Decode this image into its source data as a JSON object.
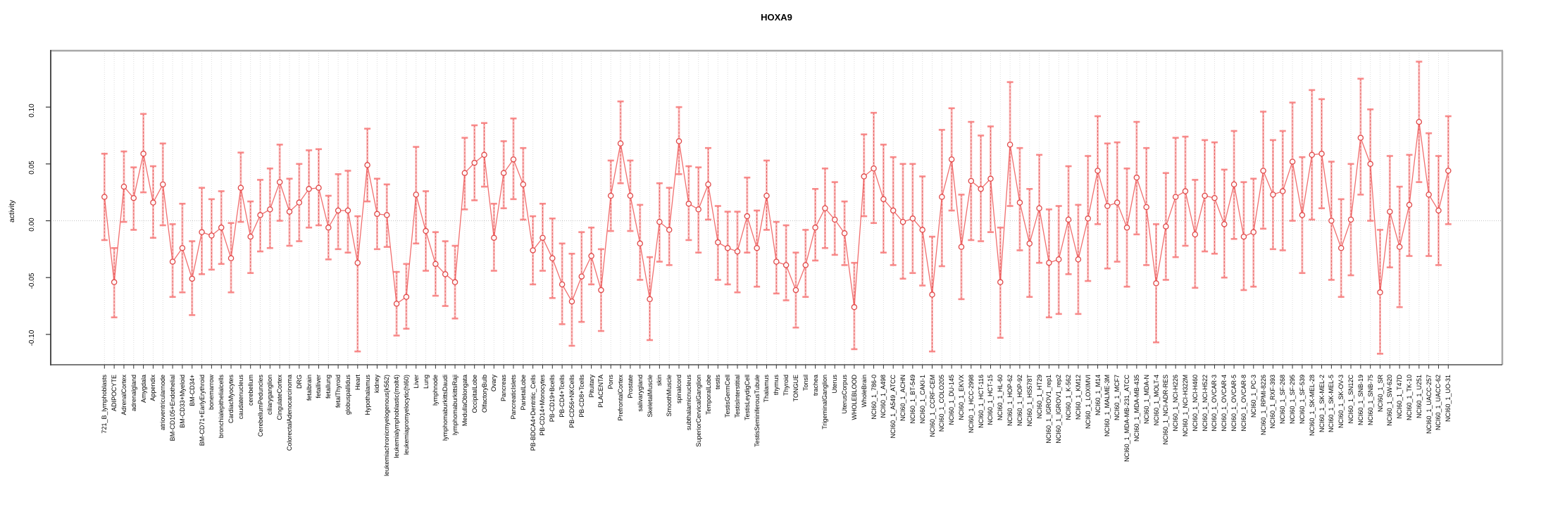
{
  "figure": {
    "title": "HOXA9",
    "y_axis_label": "activity"
  },
  "chart_data": {
    "type": "line",
    "title": "HOXA9",
    "xlabel": "",
    "ylabel": "activity",
    "ylim": [
      -0.127,
      0.15
    ],
    "ytick_labels": [
      "0.10",
      "0.05",
      "0.00",
      "-0.05",
      "-0.10"
    ],
    "ytick_values": [
      0.1,
      0.05,
      0.0,
      -0.05,
      -0.1
    ],
    "grid": "vertical-dotted-per-category, dotted-zero-line",
    "legend_position": "none",
    "marker": "open-circle",
    "error_bars": true,
    "colors": {
      "point_stroke": "#e04848",
      "line": "#ee5555",
      "error_bar": "#f98c8c",
      "error_bar_cap": "#f87f7f",
      "gridline": "#dcdcdc",
      "zero_line": "#c4c4c4",
      "box_light": "#a8a8a8",
      "box_dark": "#4d4d4d",
      "tick": "#333333"
    },
    "categories": [
      "721_B_lymphoblasts",
      "ADIPOCYTE",
      "AdrenalCortex",
      "adrenalgland",
      "Amygdala",
      "Appendix",
      "atrioventricularnode",
      "BM-CD105+Endothelial",
      "BM-CD33+Myeloid",
      "BM-CD34+",
      "BM-CD71+EarlyErythroid",
      "bonemarrow",
      "bronchialepithelialcells",
      "CardiacMyocytes",
      "caudatenucleus",
      "cerebellum",
      "CerebellumPeduncles",
      "ciliaryganglion",
      "CingulateCortex",
      "ColorectalAdenocarcinoma",
      "DRG",
      "fetalbrain",
      "fetalliver",
      "fetallung",
      "fetalThyroid",
      "globuspallidus",
      "Heart",
      "Hypothalamus",
      "kidney",
      "leukemiachronicmyelogenous(k562)",
      "leukemialymphoblastic(molt4)",
      "leukemiapromyelocytic(hl60)",
      "Liver",
      "Lung",
      "lymphnode",
      "lymphomaburkittsDaudi",
      "lymphomaburkittsRaji",
      "MedullaOblongata",
      "OccipitalLobe",
      "OlfactoryBulb",
      "Ovary",
      "Pancreas",
      "PancreaticIslets",
      "ParietalLobe",
      "PB-BDCA4+Dentritic_Cells",
      "PB-CD14+Monocytes",
      "PB-CD19+Bcells",
      "PB-CD4+Tcells",
      "PB-CD56+NKCells",
      "PB-CD8+Tcells",
      "Pituitary",
      "PLACENTA",
      "Pons",
      "PrefrontalCortex",
      "Prostate",
      "salivarygland",
      "SkeletalMuscle",
      "skin",
      "SmoothMuscle",
      "spinalcord",
      "subthalamicnucleus",
      "SuperiorCervicalGanglion",
      "TemporalLobe",
      "testis",
      "TestisGermCell",
      "TestisInterstitial",
      "TestisLeydigCell",
      "TestisSeminiferousTubule",
      "Thalamus",
      "thymus",
      "Thyroid",
      "TONGUE",
      "Tonsil",
      "trachea",
      "TrigeminalGanglion",
      "Uterus",
      "UterusCorpus",
      "WHOLEBLOOD",
      "WholeBrain",
      "NCI60_1_786-0",
      "NCI60_1_A498",
      "NCI60_1_A549_ATCC",
      "NCI60_1_ACHN",
      "NCI60_1_BT-549",
      "NCI60_1_CAKI-1",
      "NCI60_1_CCRF-CEM",
      "NCI60_1_COLO205",
      "NCI60_1_DU-145",
      "NCI60_1_EKVX",
      "NCI60_1_HCC-2998",
      "NCI60_1_HCT-116",
      "NCI60_1_HCT-15",
      "NCI60_1_HL-60",
      "NCI60_1_HOP-62",
      "NCI60_1_HOP-92",
      "NCI60_1_HS578T",
      "NCI60_1_HT29",
      "NCI60_1_IGROV1_rep1",
      "NCI60_1_IGROV1_rep2",
      "NCI60_1_K-562",
      "NCI60_1_KM12",
      "NCI60_1_LOXIMVI",
      "NCI60_1_M14",
      "NCI60_1_MALME-3M",
      "NCI60_1_MCF7",
      "NCI60_1_MDA-MB-231_ATCC",
      "NCI60_1_MDA-MB-435",
      "NCI60_1_MDA-N",
      "NCI60_1_MOLT-4",
      "NCI60_1_NCI-ADR-RES",
      "NCI60_1_NCI-H226",
      "NCI60_1_NCI-H322M",
      "NCI60_1_NCI-H460",
      "NCI60_1_NCI-H522",
      "NCI60_1_OVCAR-3",
      "NCI60_1_OVCAR-4",
      "NCI60_1_OVCAR-5",
      "NCI60_1_OVCAR-8",
      "NCI60_1_PC-3",
      "NCI60_1_RPMI-8226",
      "NCI60_1_RXF-393",
      "NCI60_1_SF-268",
      "NCI60_1_SF-295",
      "NCI60_1_SF-539",
      "NCI60_1_SK-MEL-28",
      "NCI60_1_SK-MEL-2",
      "NCI60_1_SK-MEL-5",
      "NCI60_1_SK-OV-3",
      "NCI60_1_SN12C",
      "NCI60_1_SNB-19",
      "NCI60_1_SNB-75",
      "NCI60_1_SR",
      "NCI60_1_SW-620",
      "NCI60_1_T47D",
      "NCI60_1_TK-10",
      "NCI60_1_U251",
      "NCI60_1_UACC-257",
      "NCI60_1_UACC-62",
      "NCI60_1_UO-31"
    ],
    "values": [
      0.021,
      -0.054,
      0.03,
      0.02,
      0.059,
      0.016,
      0.032,
      -0.036,
      -0.024,
      -0.051,
      -0.01,
      -0.013,
      -0.006,
      -0.033,
      0.029,
      -0.014,
      0.005,
      0.01,
      0.034,
      0.008,
      0.016,
      0.028,
      0.029,
      -0.006,
      0.009,
      0.009,
      -0.037,
      0.049,
      0.006,
      0.005,
      -0.073,
      -0.067,
      0.023,
      -0.009,
      -0.038,
      -0.047,
      -0.054,
      0.042,
      0.051,
      0.058,
      -0.015,
      0.042,
      0.054,
      0.032,
      -0.026,
      -0.015,
      -0.033,
      -0.056,
      -0.071,
      -0.049,
      -0.031,
      -0.061,
      0.022,
      0.068,
      0.022,
      -0.02,
      -0.069,
      -0.001,
      -0.008,
      0.07,
      0.015,
      0.01,
      0.032,
      -0.019,
      -0.024,
      -0.027,
      0.004,
      -0.024,
      0.022,
      -0.036,
      -0.039,
      -0.061,
      -0.039,
      -0.006,
      0.011,
      0.001,
      -0.011,
      -0.076,
      0.039,
      0.046,
      0.019,
      0.009,
      -0.001,
      0.002,
      -0.008,
      -0.065,
      0.021,
      0.054,
      -0.023,
      0.035,
      0.028,
      0.037,
      -0.054,
      0.067,
      0.016,
      -0.02,
      0.011,
      -0.037,
      -0.034,
      0.001,
      -0.034,
      0.002,
      0.044,
      0.013,
      0.016,
      -0.006,
      0.038,
      0.012,
      -0.055,
      -0.005,
      0.021,
      0.026,
      -0.012,
      0.022,
      0.02,
      -0.003,
      0.032,
      -0.014,
      -0.01,
      0.044,
      0.023,
      0.026,
      0.052,
      0.005,
      0.058,
      0.059,
      0.0,
      -0.024,
      0.001,
      0.073,
      0.05,
      -0.063,
      0.008,
      -0.023,
      0.014,
      0.087,
      0.023,
      0.009,
      0.044
    ],
    "err_lo": [
      -0.017,
      -0.085,
      -0.001,
      -0.008,
      0.025,
      -0.015,
      -0.004,
      -0.067,
      -0.063,
      -0.083,
      -0.047,
      -0.043,
      -0.038,
      -0.063,
      -0.001,
      -0.046,
      -0.027,
      -0.024,
      0.0,
      -0.022,
      -0.018,
      -0.006,
      -0.004,
      -0.034,
      -0.025,
      -0.028,
      -0.115,
      0.017,
      -0.025,
      -0.023,
      -0.101,
      -0.095,
      -0.02,
      -0.044,
      -0.066,
      -0.075,
      -0.086,
      0.01,
      0.018,
      0.03,
      -0.044,
      0.011,
      0.019,
      0.001,
      -0.056,
      -0.044,
      -0.068,
      -0.091,
      -0.11,
      -0.089,
      -0.056,
      -0.097,
      -0.009,
      0.033,
      -0.009,
      -0.052,
      -0.105,
      -0.036,
      -0.039,
      0.041,
      -0.017,
      -0.028,
      0.001,
      -0.052,
      -0.056,
      -0.063,
      -0.028,
      -0.058,
      -0.008,
      -0.064,
      -0.07,
      -0.094,
      -0.067,
      -0.035,
      -0.024,
      -0.03,
      -0.039,
      -0.113,
      0.004,
      -0.002,
      -0.028,
      -0.039,
      -0.051,
      -0.046,
      -0.057,
      -0.115,
      -0.04,
      0.009,
      -0.069,
      -0.017,
      -0.018,
      -0.01,
      -0.103,
      0.013,
      -0.026,
      -0.067,
      -0.037,
      -0.085,
      -0.082,
      -0.047,
      -0.082,
      -0.053,
      -0.003,
      -0.042,
      -0.036,
      -0.058,
      -0.012,
      -0.039,
      -0.107,
      -0.052,
      -0.032,
      -0.022,
      -0.059,
      -0.027,
      -0.029,
      -0.05,
      -0.016,
      -0.061,
      -0.058,
      -0.007,
      -0.025,
      -0.026,
      0.0,
      -0.046,
      0.001,
      0.011,
      -0.052,
      -0.067,
      -0.048,
      0.023,
      0.0,
      -0.117,
      -0.041,
      -0.076,
      -0.031,
      0.034,
      -0.031,
      -0.039,
      -0.003
    ],
    "err_hi": [
      0.059,
      -0.024,
      0.061,
      0.047,
      0.094,
      0.048,
      0.068,
      -0.003,
      0.015,
      -0.018,
      0.029,
      0.019,
      0.026,
      -0.002,
      0.06,
      0.017,
      0.036,
      0.046,
      0.067,
      0.037,
      0.05,
      0.062,
      0.063,
      0.022,
      0.041,
      0.044,
      0.004,
      0.081,
      0.037,
      0.032,
      -0.045,
      -0.038,
      0.065,
      0.026,
      -0.01,
      -0.018,
      -0.022,
      0.073,
      0.084,
      0.086,
      0.015,
      0.07,
      0.09,
      0.064,
      0.004,
      0.015,
      0.002,
      -0.02,
      -0.029,
      -0.01,
      -0.006,
      -0.025,
      0.053,
      0.105,
      0.053,
      0.014,
      -0.032,
      0.033,
      0.029,
      0.1,
      0.048,
      0.047,
      0.064,
      0.013,
      0.008,
      0.008,
      0.038,
      0.009,
      0.053,
      -0.001,
      -0.004,
      -0.028,
      -0.008,
      0.028,
      0.046,
      0.034,
      0.017,
      -0.037,
      0.076,
      0.095,
      0.067,
      0.056,
      0.05,
      0.05,
      0.039,
      -0.014,
      0.08,
      0.099,
      0.023,
      0.087,
      0.075,
      0.083,
      -0.006,
      0.122,
      0.064,
      0.028,
      0.058,
      0.01,
      0.013,
      0.048,
      0.014,
      0.057,
      0.092,
      0.068,
      0.069,
      0.046,
      0.087,
      0.064,
      -0.003,
      0.042,
      0.073,
      0.074,
      0.036,
      0.071,
      0.069,
      0.045,
      0.079,
      0.034,
      0.037,
      0.096,
      0.071,
      0.079,
      0.104,
      0.056,
      0.115,
      0.107,
      0.052,
      0.019,
      0.05,
      0.125,
      0.098,
      -0.008,
      0.057,
      0.03,
      0.058,
      0.14,
      0.077,
      0.057,
      0.092
    ]
  }
}
